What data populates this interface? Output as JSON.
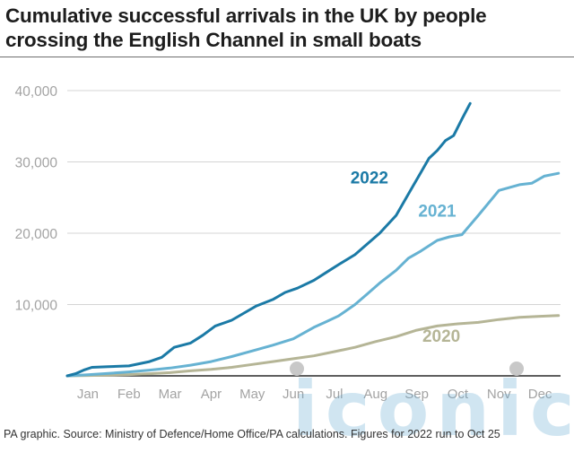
{
  "title": "Cumulative successful arrivals in the UK by people crossing the English Channel in small boats",
  "footer": "PA graphic. Source: Ministry of Defence/Home Office/PA calculations. Figures for 2022 run to Oct 25",
  "watermark": "iconic",
  "chart_data": {
    "type": "line",
    "title": "Cumulative successful arrivals in the UK by people crossing the English Channel in small boats",
    "xlabel": "",
    "ylabel": "",
    "x_ticks": [
      "Jan",
      "Feb",
      "Mar",
      "Apr",
      "May",
      "Jun",
      "Jul",
      "Aug",
      "Sep",
      "Oct",
      "Nov",
      "Dec"
    ],
    "y_ticks": [
      0,
      10000,
      20000,
      30000,
      40000
    ],
    "y_tick_labels": [
      "",
      "10,000",
      "20,000",
      "30,000",
      "40,000"
    ],
    "xlim": [
      0,
      12
    ],
    "ylim": [
      0,
      40000
    ],
    "grid": true,
    "series": [
      {
        "name": "2020",
        "color": "#b5b596",
        "x": [
          0,
          0.5,
          1.0,
          1.5,
          2.0,
          2.5,
          3.0,
          3.5,
          4.0,
          4.5,
          5.0,
          5.5,
          6.0,
          6.5,
          7.0,
          7.5,
          8.0,
          8.5,
          9.0,
          9.5,
          10.0,
          10.5,
          11.0,
          11.5,
          11.95
        ],
        "values": [
          0,
          50,
          100,
          180,
          300,
          450,
          700,
          900,
          1200,
          1600,
          2000,
          2400,
          2800,
          3400,
          4000,
          4800,
          5500,
          6400,
          7000,
          7300,
          7500,
          7900,
          8200,
          8350,
          8450
        ]
      },
      {
        "name": "2021",
        "color": "#66b2d2",
        "x": [
          0,
          0.5,
          1.0,
          1.5,
          2.0,
          2.5,
          3.0,
          3.5,
          4.0,
          4.5,
          5.0,
          5.5,
          6.0,
          6.3,
          6.6,
          7.0,
          7.3,
          7.6,
          8.0,
          8.3,
          8.6,
          9.0,
          9.3,
          9.6,
          10.0,
          10.5,
          11.0,
          11.3,
          11.6,
          11.95
        ],
        "values": [
          0,
          150,
          350,
          550,
          800,
          1100,
          1500,
          2000,
          2700,
          3500,
          4300,
          5200,
          6800,
          7600,
          8400,
          10000,
          11500,
          13000,
          14800,
          16500,
          17500,
          19000,
          19500,
          19800,
          22500,
          26000,
          26800,
          27000,
          28000,
          28400
        ]
      },
      {
        "name": "2022",
        "color": "#1b7aa6",
        "x": [
          0,
          0.2,
          0.4,
          0.6,
          1.0,
          1.5,
          2.0,
          2.3,
          2.6,
          3.0,
          3.3,
          3.6,
          4.0,
          4.3,
          4.6,
          5.0,
          5.3,
          5.6,
          6.0,
          6.3,
          6.6,
          7.0,
          7.3,
          7.6,
          8.0,
          8.2,
          8.4,
          8.6,
          8.8,
          9.0,
          9.2,
          9.4,
          9.6,
          9.8
        ],
        "values": [
          0,
          300,
          800,
          1200,
          1300,
          1400,
          2000,
          2600,
          4000,
          4600,
          5700,
          7000,
          7800,
          8800,
          9800,
          10700,
          11700,
          12300,
          13400,
          14500,
          15600,
          17000,
          18500,
          20000,
          22500,
          24500,
          26500,
          28500,
          30500,
          31600,
          33000,
          33700,
          36000,
          38200
        ]
      }
    ],
    "annotations": [
      {
        "text": "2022",
        "series": "2022",
        "x": 7.35,
        "y": 27000
      },
      {
        "text": "2021",
        "series": "2021",
        "x": 9.0,
        "y": 22300
      },
      {
        "text": "2020",
        "series": "2020",
        "x": 9.1,
        "y": 4800
      }
    ]
  }
}
